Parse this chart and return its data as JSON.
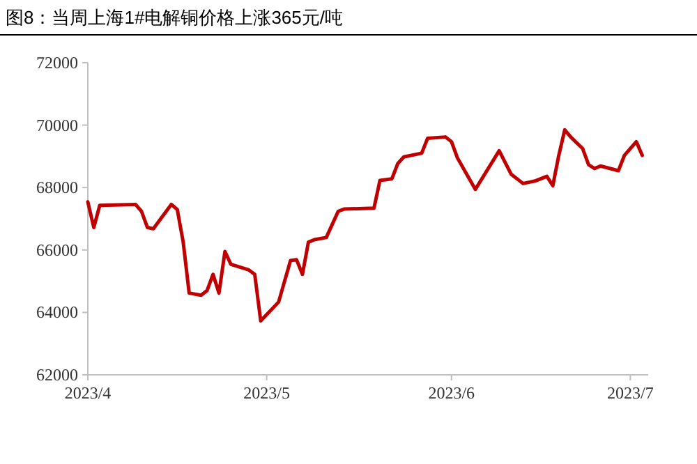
{
  "chart_data": {
    "type": "line",
    "title": "图8：当周上海1#电解铜价格上涨365元/吨",
    "x": [
      "2023-04-01",
      "2023-04-02",
      "2023-04-03",
      "2023-04-09",
      "2023-04-10",
      "2023-04-11",
      "2023-04-12",
      "2023-04-15",
      "2023-04-16",
      "2023-04-17",
      "2023-04-18",
      "2023-04-20",
      "2023-04-21",
      "2023-04-22",
      "2023-04-23",
      "2023-04-24",
      "2023-04-25",
      "2023-04-28",
      "2023-04-29",
      "2023-04-30",
      "2023-05-03",
      "2023-05-05",
      "2023-05-06",
      "2023-05-07",
      "2023-05-08",
      "2023-05-09",
      "2023-05-11",
      "2023-05-13",
      "2023-05-14",
      "2023-05-19",
      "2023-05-20",
      "2023-05-22",
      "2023-05-23",
      "2023-05-24",
      "2023-05-27",
      "2023-05-28",
      "2023-05-31",
      "2023-06-01",
      "2023-06-02",
      "2023-06-05",
      "2023-06-09",
      "2023-06-11",
      "2023-06-12",
      "2023-06-13",
      "2023-06-15",
      "2023-06-17",
      "2023-06-18",
      "2023-06-19",
      "2023-06-20",
      "2023-06-21",
      "2023-06-23",
      "2023-06-24",
      "2023-06-25",
      "2023-06-26",
      "2023-06-29",
      "2023-06-30",
      "2023-07-02",
      "2023-07-03"
    ],
    "series": [
      {
        "color": "#c00000",
        "values": [
          67540,
          66720,
          67430,
          67460,
          67240,
          66720,
          66680,
          67460,
          67300,
          66250,
          64620,
          64550,
          64700,
          65220,
          64620,
          65950,
          65540,
          65360,
          65220,
          63730,
          64330,
          65660,
          65690,
          65220,
          66250,
          66330,
          66400,
          67240,
          67310,
          67340,
          68230,
          68280,
          68770,
          68980,
          69100,
          69580,
          69620,
          69470,
          68950,
          67940,
          69180,
          68430,
          68280,
          68130,
          68210,
          68360,
          68060,
          69030,
          69850,
          69620,
          69250,
          68730,
          68610,
          68690,
          68540,
          69030,
          69470,
          69030
        ]
      }
    ],
    "xlim": [
      "2023-04-01",
      "2023-07-04"
    ],
    "xticks": [
      {
        "value": "2023-04-01",
        "label": "2023/4"
      },
      {
        "value": "2023-05-01",
        "label": "2023/5"
      },
      {
        "value": "2023-06-01",
        "label": "2023/6"
      },
      {
        "value": "2023-07-01",
        "label": "2023/7"
      }
    ],
    "ylim": [
      62000,
      72000
    ],
    "yticks": [
      62000,
      64000,
      66000,
      68000,
      70000,
      72000
    ]
  }
}
